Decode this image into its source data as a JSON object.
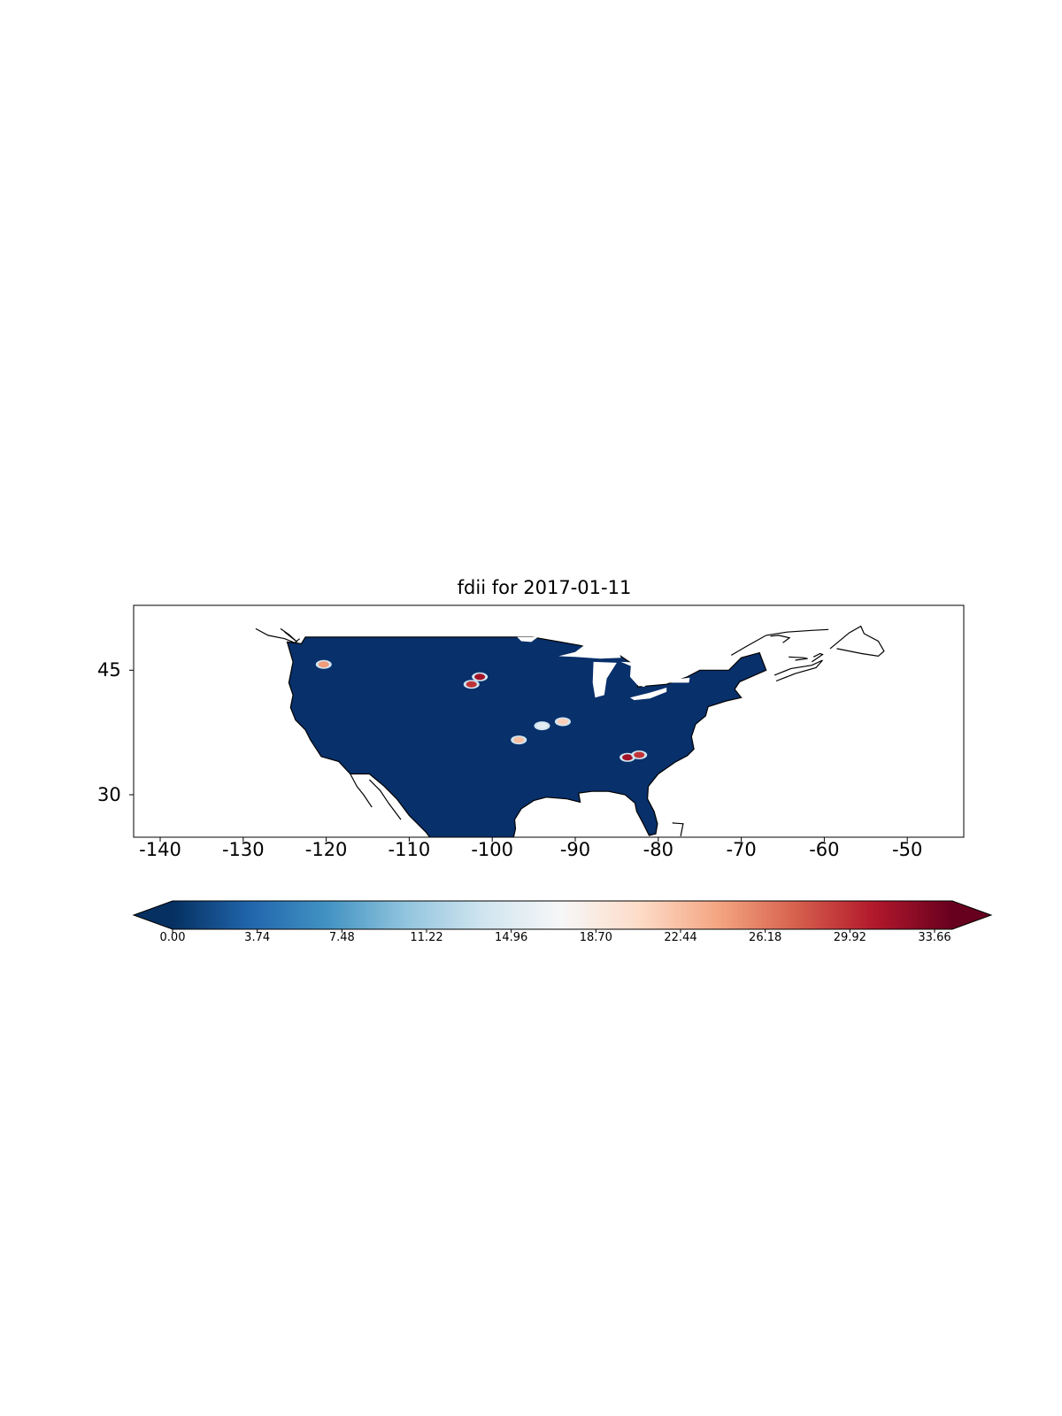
{
  "title": "fdii for 2017-01-11",
  "map": {
    "projection": "PlateCarree",
    "lon_range": [
      -143.5,
      -44.0
    ],
    "lat_range": [
      22.0,
      50.0
    ],
    "x_ticks": [
      {
        "value": -140,
        "label": "-140"
      },
      {
        "value": -130,
        "label": "-130"
      },
      {
        "value": -120,
        "label": "-120"
      },
      {
        "value": -110,
        "label": "-110"
      },
      {
        "value": -100,
        "label": "-100"
      },
      {
        "value": -90,
        "label": "-90"
      },
      {
        "value": -80,
        "label": "-80"
      },
      {
        "value": -70,
        "label": "-70"
      },
      {
        "value": -60,
        "label": "-60"
      },
      {
        "value": -50,
        "label": "-50"
      }
    ],
    "y_ticks": [
      {
        "value": 45,
        "label": "45"
      },
      {
        "value": 30,
        "label": "30"
      }
    ],
    "background_field_value": 0.0,
    "field_color": "#08306b",
    "coastline_color": "#000000",
    "hotspots": [
      {
        "lon": -120.3,
        "lat": 45.7,
        "value": 24.0
      },
      {
        "lon": -101.5,
        "lat": 44.2,
        "value": 31.0
      },
      {
        "lon": -102.5,
        "lat": 43.3,
        "value": 29.0
      },
      {
        "lon": -94.0,
        "lat": 38.3,
        "value": 15.0
      },
      {
        "lon": -96.8,
        "lat": 36.6,
        "value": 22.0
      },
      {
        "lon": -83.7,
        "lat": 34.5,
        "value": 31.0
      },
      {
        "lon": -82.3,
        "lat": 34.8,
        "value": 29.0
      },
      {
        "lon": -91.5,
        "lat": 38.8,
        "value": 21.0
      }
    ]
  },
  "colorbar": {
    "cmap": "RdBu_r",
    "extend": "both",
    "min": 0.0,
    "max": 33.66,
    "colors": [
      "#053061",
      "#2166ac",
      "#4393c3",
      "#92c5de",
      "#d1e5f0",
      "#f7f7f7",
      "#fddbc7",
      "#f4a582",
      "#d6604d",
      "#b2182b",
      "#67001f"
    ],
    "ticks": [
      {
        "value": 0.0,
        "label": "0.00"
      },
      {
        "value": 3.74,
        "label": "3.74"
      },
      {
        "value": 7.48,
        "label": "7.48"
      },
      {
        "value": 11.22,
        "label": "11.22"
      },
      {
        "value": 14.96,
        "label": "14.96"
      },
      {
        "value": 18.7,
        "label": "18.70"
      },
      {
        "value": 22.44,
        "label": "22.44"
      },
      {
        "value": 26.18,
        "label": "26.18"
      },
      {
        "value": 29.92,
        "label": "29.92"
      },
      {
        "value": 33.66,
        "label": "33.66"
      }
    ]
  }
}
